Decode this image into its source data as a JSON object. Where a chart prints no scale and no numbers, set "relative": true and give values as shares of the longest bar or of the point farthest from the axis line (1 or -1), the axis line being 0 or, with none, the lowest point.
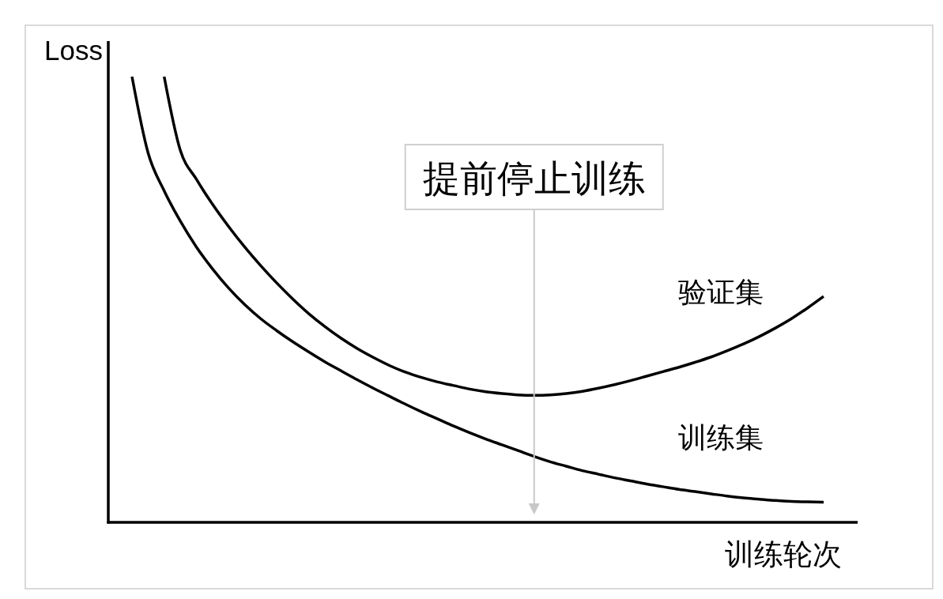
{
  "chart_data": {
    "type": "line",
    "relative": true,
    "ylabel": "Loss",
    "xlabel": "训练轮次",
    "annotations": [
      "提前停止训练"
    ],
    "categories": [
      null,
      null,
      null,
      null,
      null,
      null,
      null,
      null,
      null,
      null,
      null,
      null,
      null,
      null,
      null,
      null,
      null,
      null,
      null,
      null,
      null,
      null,
      null,
      null,
      null,
      null,
      null,
      null,
      null,
      null,
      null,
      null,
      null,
      null,
      null,
      null,
      null,
      null,
      null,
      null,
      null,
      null,
      null,
      null
    ],
    "series": [
      {
        "name": "训练集",
        "color": "#000000",
        "values": [
          1.0,
          0.829,
          0.744,
          0.676,
          0.618,
          0.569,
          0.526,
          0.489,
          0.457,
          0.43,
          0.405,
          0.382,
          0.36,
          0.34,
          0.32,
          0.301,
          0.283,
          0.265,
          0.248,
          0.232,
          0.216,
          0.201,
          0.187,
          0.174,
          0.161,
          0.148,
          0.136,
          0.126,
          0.116,
          0.108,
          0.1,
          0.093,
          0.086,
          0.08,
          0.074,
          0.069,
          0.064,
          0.059,
          0.055,
          0.052,
          0.049,
          0.047,
          0.046,
          0.045
        ]
      },
      {
        "name": "验证集",
        "color": "#000000",
        "values": [
          null,
          null,
          1.0,
          0.835,
          0.77,
          0.714,
          0.664,
          0.618,
          0.576,
          0.537,
          0.501,
          0.468,
          0.439,
          0.413,
          0.39,
          0.37,
          0.352,
          0.337,
          0.325,
          0.315,
          0.307,
          0.299,
          0.293,
          0.289,
          0.286,
          0.285,
          0.286,
          0.289,
          0.294,
          0.301,
          0.309,
          0.318,
          0.328,
          0.338,
          0.348,
          0.359,
          0.371,
          0.385,
          0.4,
          0.417,
          0.436,
          0.457,
          0.481,
          0.507
        ]
      }
    ]
  }
}
